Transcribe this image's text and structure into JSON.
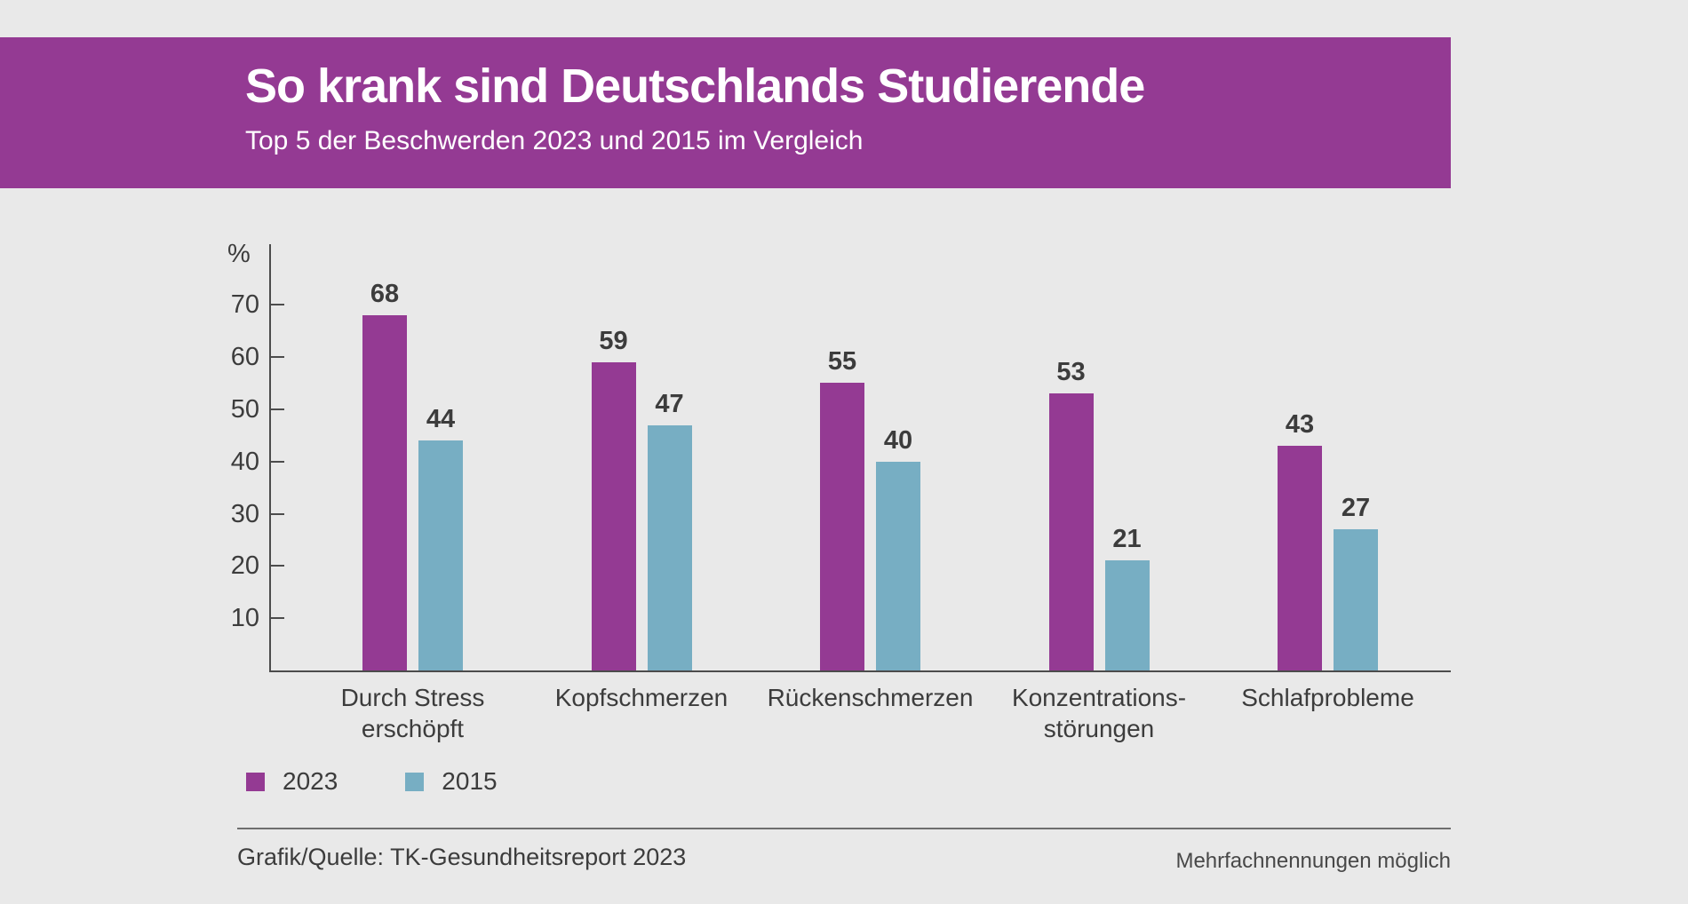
{
  "colors": {
    "background": "#e9e9e9",
    "band": "#943a93",
    "bar_2023": "#943a93",
    "bar_2015": "#77aec3",
    "text": "#3c3c3c",
    "axis": "#4c4c4c"
  },
  "header": {
    "title": "So krank sind Deutschlands Studierende",
    "subtitle": "Top 5 der Beschwerden 2023 und 2015 im Vergleich"
  },
  "chart_data": {
    "type": "bar",
    "title": "Top 5 der Beschwerden 2023 und 2015 im Vergleich",
    "unit_label": "%",
    "categories": [
      "Durch Stress erschöpft",
      "Kopfschmerzen",
      "Rückenschmerzen",
      "Konzentrations­störungen",
      "Schlafprobleme"
    ],
    "category_lines": [
      [
        "Durch Stress",
        "erschöpft"
      ],
      [
        "Kopfschmerzen"
      ],
      [
        "Rückenschmerzen"
      ],
      [
        "Konzentrations-",
        "störungen"
      ],
      [
        "Schlafprobleme"
      ]
    ],
    "series": [
      {
        "name": "2023",
        "color": "#943a93",
        "values": [
          68,
          59,
          55,
          53,
          43
        ]
      },
      {
        "name": "2015",
        "color": "#77aec3",
        "values": [
          44,
          47,
          40,
          21,
          27
        ]
      }
    ],
    "ylabel": "%",
    "ylim": [
      0,
      81
    ],
    "yticks": [
      10,
      20,
      30,
      40,
      50,
      60,
      70
    ],
    "grid": false,
    "value_labels": true,
    "legend_position": "bottom-left"
  },
  "footer": {
    "source": "Grafik/Quelle: TK-Gesundheitsreport 2023",
    "note": "Mehrfachnennungen möglich"
  }
}
